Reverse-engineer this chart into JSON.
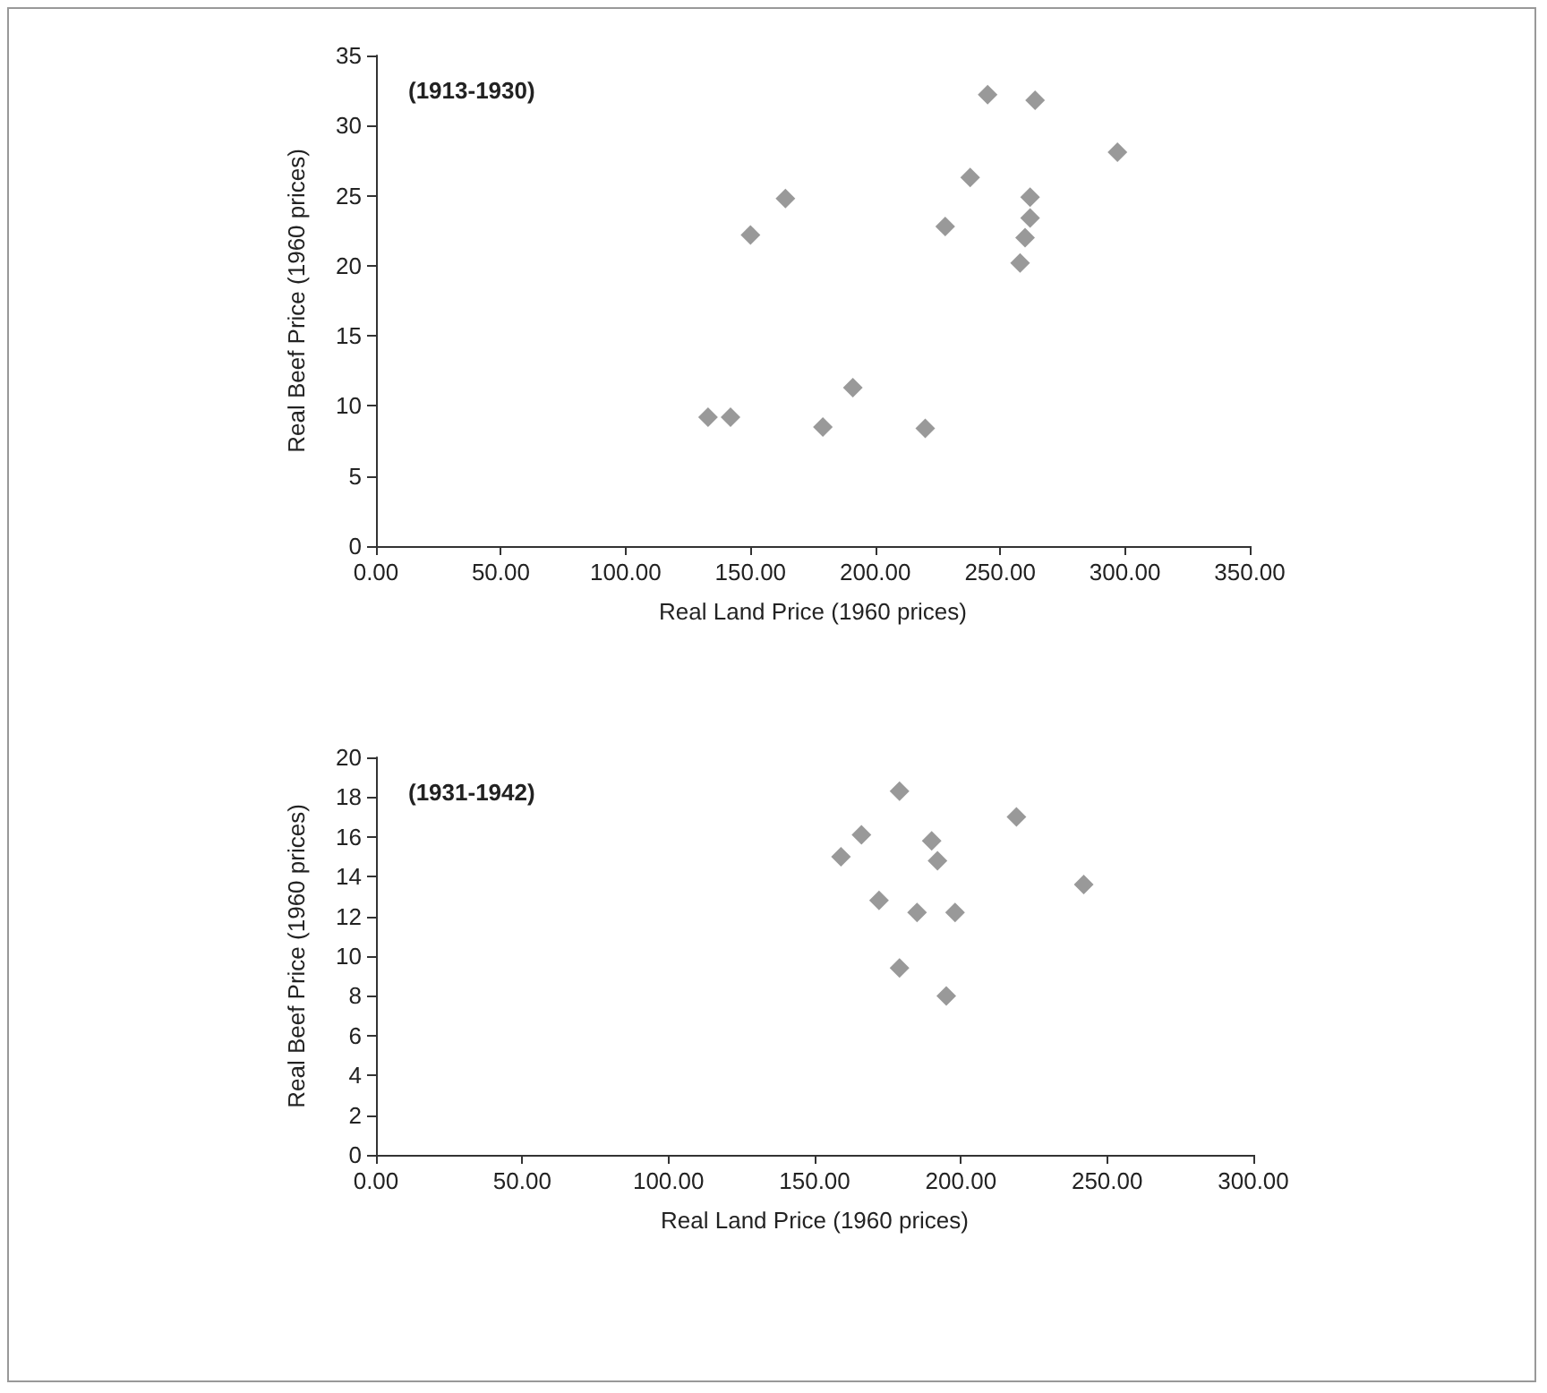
{
  "chart_data": [
    {
      "type": "scatter",
      "title": "(1913-1930)",
      "xlabel": "Real Land Price (1960 prices)",
      "ylabel": "Real Beef Price (1960 prices)",
      "marker": "diamond",
      "x": [
        133,
        142,
        150,
        164,
        179,
        191,
        220,
        228,
        238,
        245,
        258,
        260,
        262,
        262,
        264,
        297
      ],
      "series": [
        {
          "color": "#7f7f7f",
          "values": [
            9.2,
            9.2,
            22.2,
            24.8,
            8.5,
            11.3,
            8.4,
            22.8,
            26.3,
            32.2,
            20.2,
            22,
            23.4,
            24.9,
            31.8,
            28.1
          ]
        }
      ],
      "xlim": [
        0,
        350
      ],
      "xticks": [
        {
          "value": 0,
          "label": "0.00"
        },
        {
          "value": 50,
          "label": "50.00"
        },
        {
          "value": 100,
          "label": "100.00"
        },
        {
          "value": 150,
          "label": "150.00"
        },
        {
          "value": 200,
          "label": "200.00"
        },
        {
          "value": 250,
          "label": "250.00"
        },
        {
          "value": 300,
          "label": "300.00"
        },
        {
          "value": 350,
          "label": "350.00"
        }
      ],
      "ylim": [
        0,
        35
      ],
      "yticks": [
        0,
        5,
        10,
        15,
        20,
        25,
        30,
        35
      ]
    },
    {
      "type": "scatter",
      "title": "(1931-1942)",
      "xlabel": "Real Land Price (1960 prices)",
      "ylabel": "Real Beef Price (1960 prices)",
      "marker": "diamond",
      "x": [
        159,
        166,
        179,
        219,
        190,
        192,
        242,
        172,
        185,
        198,
        179,
        195
      ],
      "series": [
        {
          "color": "#7f7f7f",
          "values": [
            15.0,
            16.1,
            18.3,
            17.0,
            15.8,
            14.8,
            13.6,
            12.8,
            12.2,
            12.2,
            9.4,
            8.0
          ]
        }
      ],
      "xlim": [
        0,
        300
      ],
      "xticks": [
        {
          "value": 0,
          "label": "0.00"
        },
        {
          "value": 50,
          "label": "50.00"
        },
        {
          "value": 100,
          "label": "100.00"
        },
        {
          "value": 150,
          "label": "150.00"
        },
        {
          "value": 200,
          "label": "200.00"
        },
        {
          "value": 250,
          "label": "250.00"
        },
        {
          "value": 300,
          "label": "300.00"
        }
      ],
      "ylim": [
        0,
        20
      ],
      "yticks": [
        0,
        2,
        4,
        6,
        8,
        10,
        12,
        14,
        16,
        18,
        20
      ]
    }
  ]
}
